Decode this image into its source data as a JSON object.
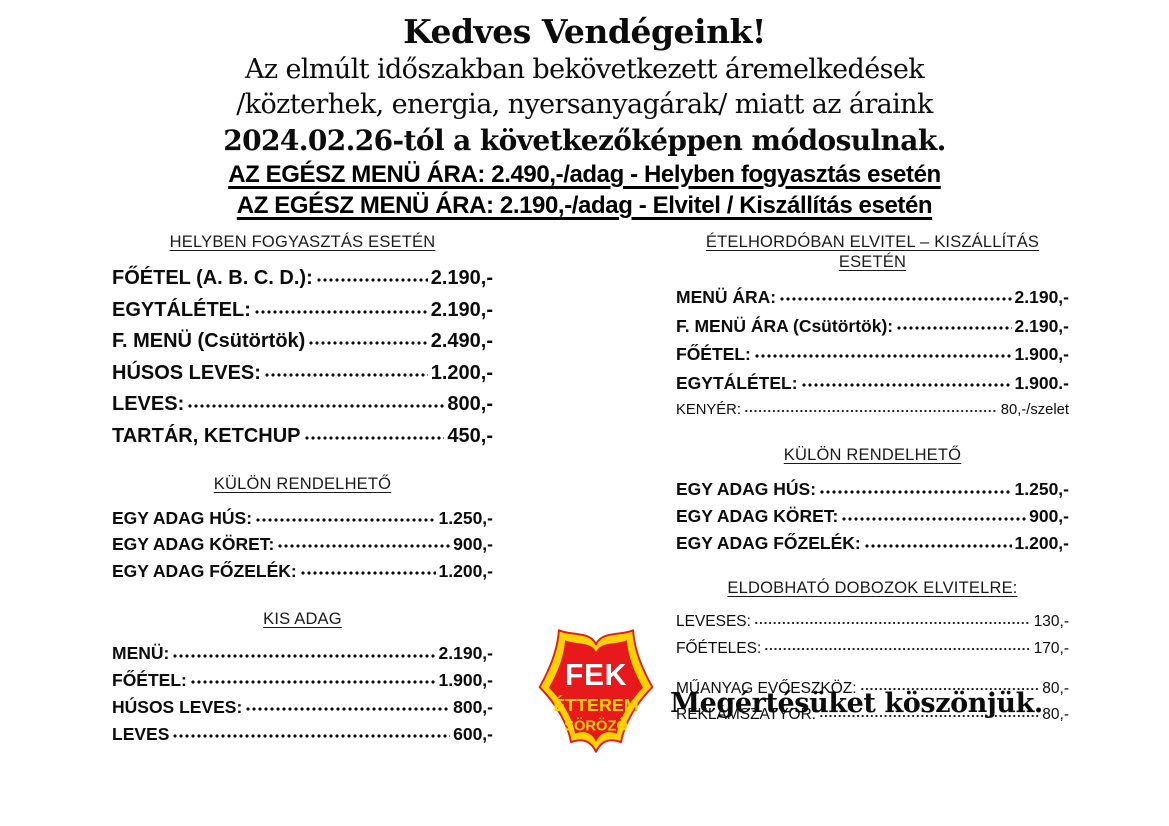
{
  "header": {
    "title": "Kedves Vendégeink!",
    "intro_line1": "Az elmúlt időszakban bekövetkezett áremelkedések",
    "intro_line2": "/közterhek, energia, nyersanyagárak/ miatt az áraink",
    "intro_line3": "2024.02.26-tól a következőképpen módosulnak.",
    "banner1": "AZ EGÉSZ MENÜ ÁRA: 2.490,-/adag - Helyben fogyasztás esetén",
    "banner2": "AZ EGÉSZ MENÜ ÁRA: 2.190,-/adag - Elvitel / Kiszállítás esetén"
  },
  "columns": {
    "left": {
      "sections": [
        {
          "heading": "HELYBEN FOGYASZTÁS ESETÉN",
          "items": [
            {
              "label": "FŐÉTEL (A. B. C. D.):",
              "price": "2.190,-",
              "bold": true
            },
            {
              "label": "EGYTÁLÉTEL:",
              "price": "2.190,-",
              "bold": true
            },
            {
              "label": "F. MENÜ (Csütörtök)",
              "price": "2.490,-",
              "bold": true
            },
            {
              "label": "HÚSOS LEVES:",
              "price": "1.200,-",
              "bold": true
            },
            {
              "label": "LEVES:",
              "price": "800,-",
              "bold": true
            },
            {
              "label": "TARTÁR, KETCHUP",
              "price": "450,-",
              "bold": true
            }
          ]
        },
        {
          "heading": "KÜLÖN RENDELHETŐ",
          "items": [
            {
              "label": "EGY ADAG HÚS:",
              "price": "1.250,-",
              "bold": true
            },
            {
              "label": "EGY ADAG KÖRET:",
              "price": "900,-",
              "bold": true
            },
            {
              "label": "EGY ADAG FŐZELÉK:",
              "price": "1.200,-",
              "bold": true
            }
          ]
        },
        {
          "heading": "KIS ADAG",
          "items": [
            {
              "label": "MENÜ:",
              "price": "2.190,-",
              "bold": true
            },
            {
              "label": "FŐÉTEL:",
              "price": "1.900,-",
              "bold": true
            },
            {
              "label": "HÚSOS LEVES:",
              "price": "800,-",
              "bold": true
            },
            {
              "label": "LEVES",
              "price": "600,-",
              "bold": true
            }
          ]
        }
      ]
    },
    "right": {
      "sections": [
        {
          "heading": "ÉTELHORDÓBAN ELVITEL – KISZÁLLÍTÁS ESETÉN",
          "items": [
            {
              "label": "MENÜ ÁRA:",
              "price": "2.190,-",
              "bold": true
            },
            {
              "label": "F. MENÜ ÁRA (Csütörtök):",
              "price": "2.190,-",
              "bold": true
            },
            {
              "label": "FŐÉTEL:",
              "price": "1.900,-",
              "bold": true
            },
            {
              "label": "EGYTÁLÉTEL:",
              "price": "1.900.-",
              "bold": true
            },
            {
              "label": "KENYÉR:",
              "price": "80,-/szelet",
              "bold": false
            }
          ]
        },
        {
          "heading": "KÜLÖN RENDELHETŐ",
          "items": [
            {
              "label": "EGY ADAG HÚS:",
              "price": "1.250,-",
              "bold": true
            },
            {
              "label": "EGY ADAG KÖRET:",
              "price": "900,-",
              "bold": true
            },
            {
              "label": "EGY ADAG FŐZELÉK:",
              "price": "1.200,-",
              "bold": true
            }
          ]
        },
        {
          "heading": "ELDOBHATÓ DOBOZOK ELVITELRE:",
          "items": [
            {
              "label": "LEVESES:",
              "price": "130,-",
              "bold": false
            },
            {
              "label": "FŐÉTELES:",
              "price": "170,-",
              "bold": false
            }
          ]
        },
        {
          "heading": "",
          "items": [
            {
              "label": "MŰANYAG EVŐESZKÖZ:",
              "price": "80,-",
              "bold": false
            },
            {
              "label": "REKLÁMSZATYOR:",
              "price": "80,-",
              "bold": false
            }
          ]
        }
      ]
    }
  },
  "closing": "Megértésüket köszönjük.",
  "logo": {
    "line1": "FEK",
    "line2": "ÉTTEREM",
    "line3": "SÖRÖZŐ",
    "colors": {
      "red": "#e8191d",
      "yellow": "#ffd200",
      "white": "#ffffff"
    }
  }
}
